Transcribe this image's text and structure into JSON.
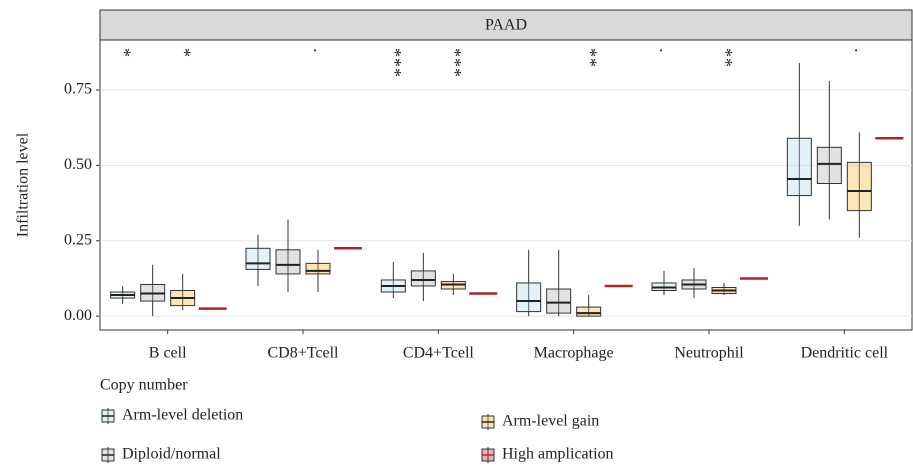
{
  "chart_data": {
    "type": "box",
    "title": "PAAD",
    "ylabel": "Infiltration level",
    "legend_title": "Copy number",
    "categories": [
      "B cell",
      "CD8+Tcell",
      "CD4+Tcell",
      "Macrophage",
      "Neutrophil",
      "Dendritic cell"
    ],
    "ylim": [
      -0.046,
      0.916
    ],
    "yticks": [
      {
        "value": 0,
        "label": "0.00"
      },
      {
        "value": 0.25,
        "label": "0.25"
      },
      {
        "value": 0.5,
        "label": "0.50"
      },
      {
        "value": 0.75,
        "label": "0.75"
      }
    ],
    "grid": true,
    "series": [
      {
        "name": "Arm-level deletion",
        "color": "#add8e6",
        "values": [
          {
            "min": 0.04,
            "q1": 0.06,
            "median": 0.07,
            "q3": 0.08,
            "max": 0.1
          },
          {
            "min": 0.1,
            "q1": 0.155,
            "median": 0.175,
            "q3": 0.225,
            "max": 0.27
          },
          {
            "min": 0.06,
            "q1": 0.08,
            "median": 0.1,
            "q3": 0.12,
            "max": 0.18
          },
          {
            "min": 0,
            "q1": 0.015,
            "median": 0.05,
            "q3": 0.11,
            "max": 0.22
          },
          {
            "min": 0.07,
            "q1": 0.085,
            "median": 0.095,
            "q3": 0.11,
            "max": 0.15
          },
          {
            "min": 0.3,
            "q1": 0.4,
            "median": 0.455,
            "q3": 0.59,
            "max": 0.84
          }
        ],
        "signif": [
          "*",
          null,
          "***",
          null,
          ".",
          null
        ]
      },
      {
        "name": "Diploid/normal",
        "color": "#a9a9a9",
        "values": [
          {
            "min": 0,
            "q1": 0.05,
            "median": 0.075,
            "q3": 0.105,
            "max": 0.17
          },
          {
            "min": 0.08,
            "q1": 0.14,
            "median": 0.17,
            "q3": 0.22,
            "max": 0.32
          },
          {
            "min": 0.05,
            "q1": 0.1,
            "median": 0.12,
            "q3": 0.15,
            "max": 0.21
          },
          {
            "min": 0,
            "q1": 0.01,
            "median": 0.045,
            "q3": 0.09,
            "max": 0.22
          },
          {
            "min": 0.06,
            "q1": 0.09,
            "median": 0.105,
            "q3": 0.12,
            "max": 0.16
          },
          {
            "min": 0.32,
            "q1": 0.44,
            "median": 0.505,
            "q3": 0.56,
            "max": 0.78
          }
        ],
        "signif": [
          null,
          null,
          null,
          null,
          null,
          null
        ]
      },
      {
        "name": "Arm-level gain",
        "color": "#f0b429",
        "values": [
          {
            "min": 0.02,
            "q1": 0.035,
            "median": 0.06,
            "q3": 0.085,
            "max": 0.14
          },
          {
            "min": 0.08,
            "q1": 0.14,
            "median": 0.15,
            "q3": 0.175,
            "max": 0.22
          },
          {
            "min": 0.07,
            "q1": 0.09,
            "median": 0.105,
            "q3": 0.115,
            "max": 0.14
          },
          {
            "min": 0,
            "q1": 0,
            "median": 0.01,
            "q3": 0.03,
            "max": 0.07
          },
          {
            "min": 0.07,
            "q1": 0.075,
            "median": 0.085,
            "q3": 0.095,
            "max": 0.11
          },
          {
            "min": 0.26,
            "q1": 0.35,
            "median": 0.415,
            "q3": 0.51,
            "max": 0.61
          }
        ],
        "signif": [
          "*",
          ".",
          "***",
          "**",
          "**",
          "."
        ]
      },
      {
        "name": "High amplication",
        "color": "#b22222",
        "values": [
          0.025,
          0.225,
          0.075,
          0.1,
          0.125,
          0.59
        ],
        "signif": [
          null,
          null,
          null,
          null,
          null,
          null
        ]
      }
    ]
  }
}
